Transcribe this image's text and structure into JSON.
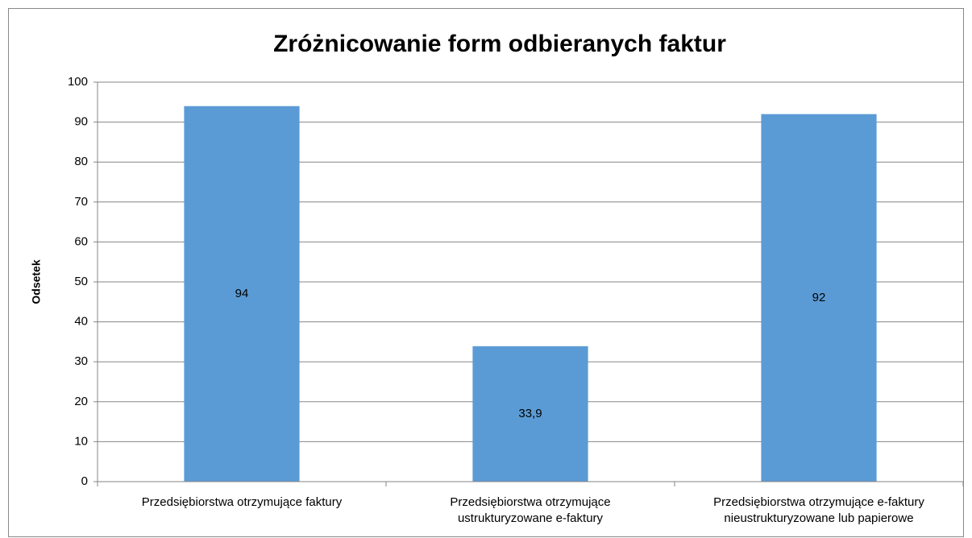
{
  "chart_data": {
    "type": "bar",
    "title": "Zróżnicowanie form odbieranych faktur",
    "y_label": "Odsetek",
    "categories": [
      "Przedsiębiorstwa otrzymujące faktury",
      "Przedsiębiorstwa otrzymujące ustrukturyzowane e-faktury",
      "Przedsiębiorstwa otrzymujące e-faktury nieustrukturyzowane lub papierowe"
    ],
    "values": [
      94,
      33.9,
      92
    ],
    "value_labels": [
      "94",
      "33,9",
      "92"
    ],
    "color": "#5b9bd5",
    "ylim": [
      0,
      100
    ],
    "yticks": [
      0,
      10,
      20,
      30,
      40,
      50,
      60,
      70,
      80,
      90,
      100
    ],
    "grid": true
  }
}
